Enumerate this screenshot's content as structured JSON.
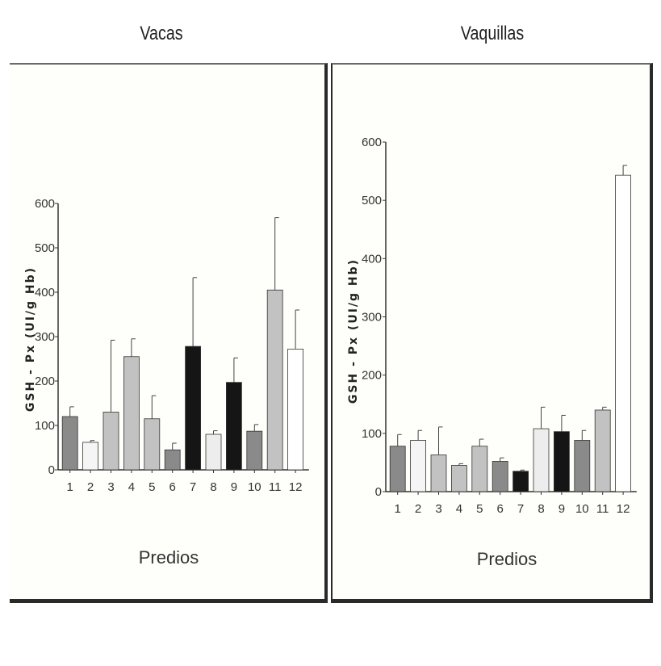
{
  "chart_data": [
    {
      "type": "bar",
      "title": "Vacas",
      "xlabel": "Predios",
      "ylabel": "GSH - Px (UI/g Hb)",
      "ylim": [
        0,
        600
      ],
      "yticks": [
        0,
        100,
        200,
        300,
        400,
        500,
        600
      ],
      "categories": [
        "1",
        "2",
        "3",
        "4",
        "5",
        "6",
        "7",
        "8",
        "9",
        "10",
        "11",
        "12"
      ],
      "values": [
        120,
        62,
        130,
        255,
        115,
        45,
        278,
        80,
        197,
        87,
        405,
        272
      ],
      "error": [
        22,
        4,
        162,
        40,
        52,
        15,
        155,
        8,
        55,
        15,
        163,
        88
      ],
      "colors": [
        "#8a8a8a",
        "#f5f5f5",
        "#c2c2c2",
        "#c2c2c2",
        "#c2c2c2",
        "#8a8a8a",
        "#151515",
        "#ededed",
        "#151515",
        "#8a8a8a",
        "#c2c2c2",
        "#ffffff"
      ]
    },
    {
      "type": "bar",
      "title": "Vaquillas",
      "xlabel": "Predios",
      "ylabel": "GSH - Px (UI/g Hb)",
      "ylim": [
        0,
        600
      ],
      "yticks": [
        0,
        100,
        200,
        300,
        400,
        500,
        600
      ],
      "categories": [
        "1",
        "2",
        "3",
        "4",
        "5",
        "6",
        "7",
        "8",
        "9",
        "10",
        "11",
        "12"
      ],
      "values": [
        78,
        88,
        63,
        45,
        78,
        52,
        35,
        108,
        103,
        88,
        140,
        543
      ],
      "error": [
        20,
        17,
        48,
        3,
        12,
        6,
        2,
        37,
        28,
        17,
        5,
        17
      ],
      "colors": [
        "#8a8a8a",
        "#f5f5f5",
        "#c2c2c2",
        "#c2c2c2",
        "#c2c2c2",
        "#8a8a8a",
        "#151515",
        "#ededed",
        "#151515",
        "#8a8a8a",
        "#c2c2c2",
        "#ffffff"
      ]
    }
  ]
}
